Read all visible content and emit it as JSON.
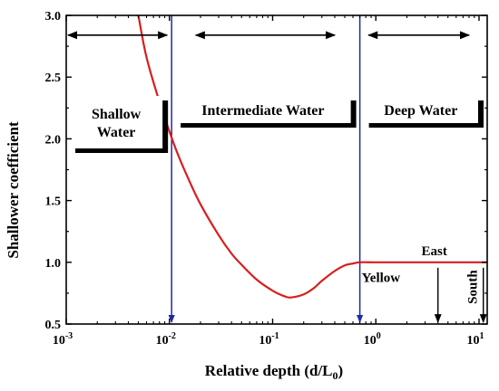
{
  "chart_data": {
    "type": "line",
    "title": "",
    "xlabel": "Relative depth (d/L",
    "xlabel_sub": "0",
    "xlabel_close": ")",
    "ylabel": "Shallower coefficient",
    "x_scale": "log",
    "xlim": [
      0.001,
      12
    ],
    "ylim": [
      0.5,
      3.0
    ],
    "x_ticks": [
      {
        "value": 0.001,
        "base": "10",
        "exp": "-3"
      },
      {
        "value": 0.01,
        "base": "10",
        "exp": "-2"
      },
      {
        "value": 0.1,
        "base": "10",
        "exp": "-1"
      },
      {
        "value": 1,
        "base": "10",
        "exp": "0"
      },
      {
        "value": 10,
        "base": "10",
        "exp": "1"
      }
    ],
    "y_ticks": [
      {
        "value": 0.5,
        "label": "0.5"
      },
      {
        "value": 1.0,
        "label": "1.0"
      },
      {
        "value": 1.5,
        "label": "1.5"
      },
      {
        "value": 2.0,
        "label": "2.0"
      },
      {
        "value": 2.5,
        "label": "2.5"
      },
      {
        "value": 3.0,
        "label": "3.0"
      }
    ],
    "grid": false,
    "series": [
      {
        "color": "#d81e1e",
        "x": [
          0.005,
          0.006,
          0.008,
          0.01,
          0.012,
          0.015,
          0.02,
          0.03,
          0.04,
          0.05,
          0.07,
          0.1,
          0.13,
          0.15,
          0.2,
          0.25,
          0.3,
          0.4,
          0.5,
          0.6,
          0.7,
          1,
          2,
          5,
          12
        ],
        "y": [
          3.0,
          2.66,
          2.3,
          2.06,
          1.88,
          1.69,
          1.47,
          1.22,
          1.07,
          0.98,
          0.86,
          0.77,
          0.725,
          0.715,
          0.74,
          0.79,
          0.85,
          0.93,
          0.975,
          0.99,
          1.0,
          1.0,
          1.0,
          1.0,
          1.0
        ]
      }
    ],
    "boundaries": [
      {
        "x": 0.0105,
        "color": "#1f2aa8"
      },
      {
        "x": 0.7,
        "color": "#1f2aa8"
      }
    ],
    "regions": [
      {
        "lines": [
          "Shallow",
          "Water"
        ],
        "x_from": 0.001,
        "x_to": 0.0105
      },
      {
        "lines": [
          "Intermediate Water"
        ],
        "x_from": 0.0105,
        "x_to": 0.7
      },
      {
        "lines": [
          "Deep Water"
        ],
        "x_from": 0.7,
        "x_to": 12
      }
    ],
    "range_arrows": [
      {
        "x_from": 0.001,
        "x_to": 0.0095,
        "y": 2.84
      },
      {
        "x_from": 0.018,
        "x_to": 0.4,
        "y": 2.84
      },
      {
        "x_from": 0.85,
        "x_to": 8,
        "y": 2.84
      }
    ],
    "markers": [
      {
        "label": "Yellow",
        "x": 0.7,
        "color": "#1f2aa8",
        "vertical": false
      },
      {
        "label": "East",
        "x": 4.0,
        "color": "#000000",
        "vertical": false
      },
      {
        "label": "South",
        "x": 11.0,
        "color": "#000000",
        "vertical": true
      }
    ]
  }
}
